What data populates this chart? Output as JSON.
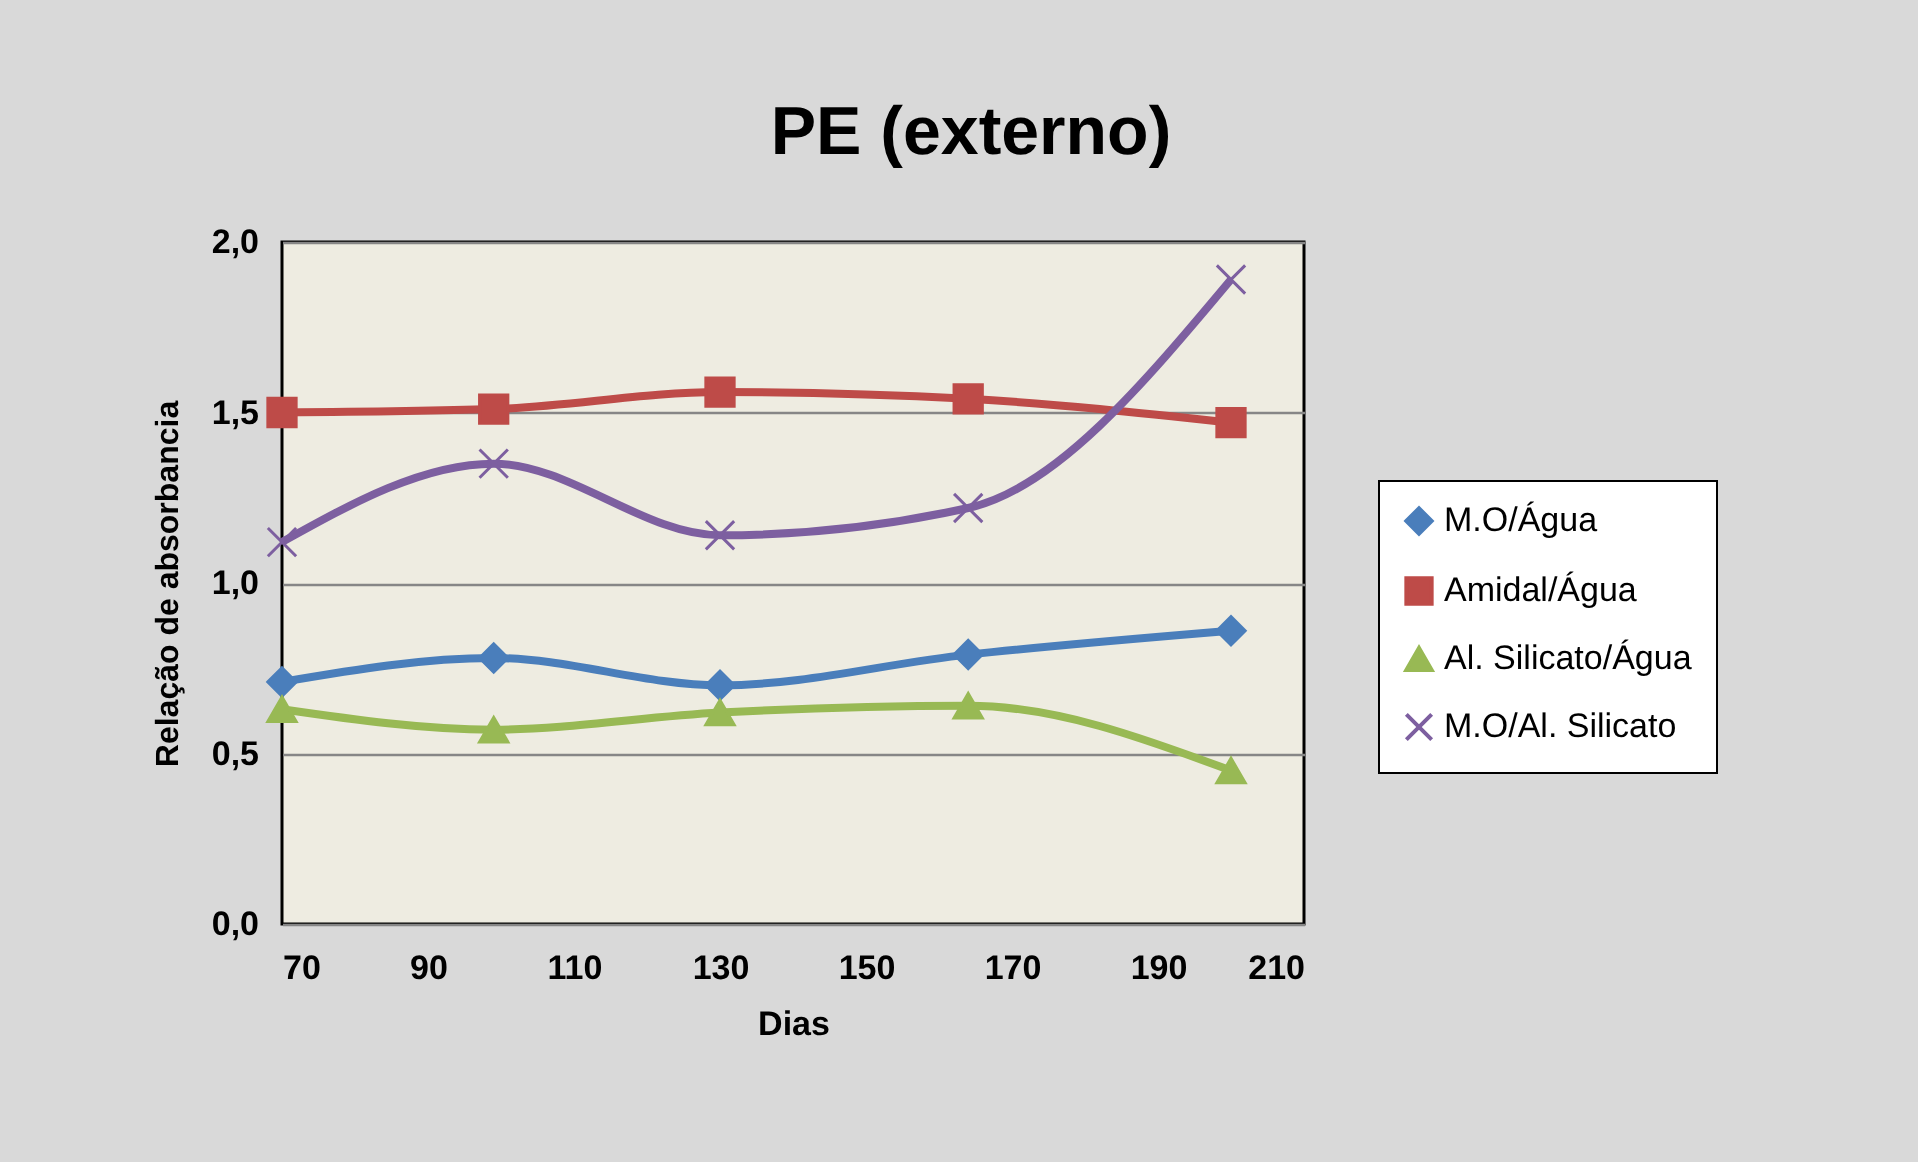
{
  "chart_data": {
    "type": "line",
    "title": "PE (externo)",
    "xlabel": "Dias",
    "ylabel": "Relação de absorbancia",
    "x": [
      70,
      99,
      130,
      164,
      200
    ],
    "series": [
      {
        "name": "M.O/Água",
        "color": "#4a7ebb",
        "marker": "diamond",
        "values": [
          0.71,
          0.78,
          0.7,
          0.79,
          0.86
        ]
      },
      {
        "name": "Amidal/Água",
        "color": "#be4b48",
        "marker": "square",
        "values": [
          1.5,
          1.51,
          1.56,
          1.54,
          1.47
        ]
      },
      {
        "name": "Al. Silicato/Água",
        "color": "#98b954",
        "marker": "triangle",
        "values": [
          0.63,
          0.57,
          0.62,
          0.64,
          0.45
        ]
      },
      {
        "name": "M.O/Al. Silicato",
        "color": "#7d5fa0",
        "marker": "cross",
        "values": [
          1.12,
          1.35,
          1.14,
          1.22,
          1.89
        ]
      }
    ],
    "xlim": [
      70,
      210
    ],
    "xticks": [
      70,
      90,
      110,
      130,
      150,
      170,
      190,
      210
    ],
    "ylim": [
      0,
      2
    ],
    "yticks": [
      {
        "value": 0,
        "label": "0,0"
      },
      {
        "value": 0.5,
        "label": "0,5"
      },
      {
        "value": 1,
        "label": "1,0"
      },
      {
        "value": 1.5,
        "label": "1,5"
      },
      {
        "value": 2,
        "label": "2,0"
      }
    ],
    "grid": "y",
    "legend": "right",
    "line_style": "solid"
  }
}
